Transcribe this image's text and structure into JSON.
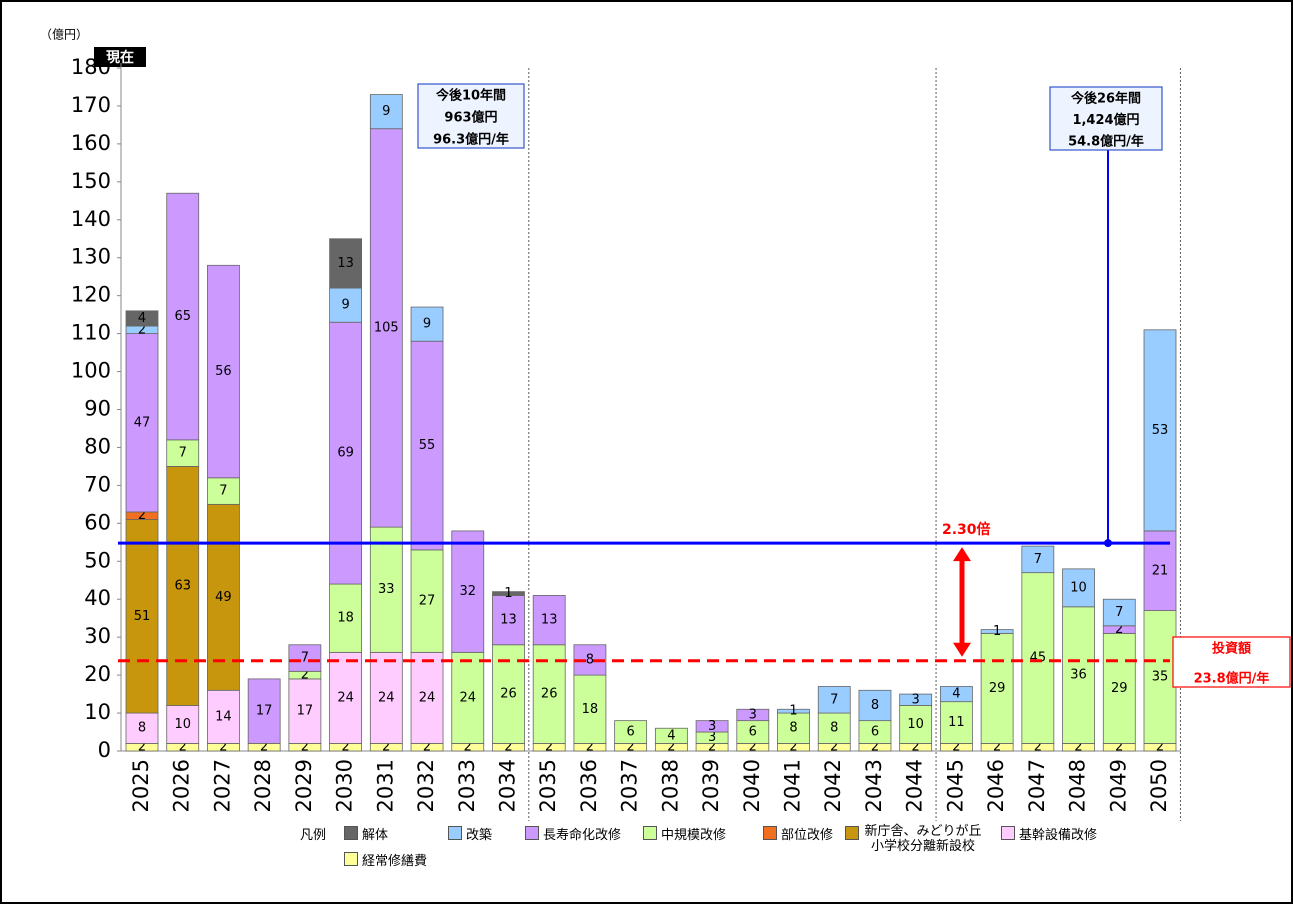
{
  "chart_data": {
    "type": "bar",
    "stacked": true,
    "unit_label": "（億円）",
    "current_label": "現在",
    "legend_title": "凡例",
    "categories": [
      "2025",
      "2026",
      "2027",
      "2028",
      "2029",
      "2030",
      "2031",
      "2032",
      "2033",
      "2034",
      "2035",
      "2036",
      "2037",
      "2038",
      "2039",
      "2040",
      "2041",
      "2042",
      "2043",
      "2044",
      "2045",
      "2046",
      "2047",
      "2048",
      "2049",
      "2050"
    ],
    "series": [
      {
        "name": "経常修繕費",
        "color": "#ffff99",
        "values": [
          2,
          2,
          2,
          2,
          2,
          2,
          2,
          2,
          2,
          2,
          2,
          2,
          2,
          2,
          2,
          2,
          2,
          2,
          2,
          2,
          2,
          2,
          2,
          2,
          2,
          2
        ]
      },
      {
        "name": "基幹設備改修",
        "color": "#ffccff",
        "values": [
          8,
          10,
          14,
          null,
          17,
          24,
          24,
          24,
          null,
          null,
          null,
          null,
          null,
          null,
          null,
          null,
          null,
          null,
          null,
          null,
          null,
          null,
          null,
          null,
          null,
          null
        ]
      },
      {
        "name": "新庁舎、みどりが丘小学校分離新設校",
        "color": "#c8960c",
        "values": [
          51,
          63,
          49,
          null,
          null,
          null,
          null,
          null,
          null,
          null,
          null,
          null,
          null,
          null,
          null,
          null,
          null,
          null,
          null,
          null,
          null,
          null,
          null,
          null,
          null,
          null
        ]
      },
      {
        "name": "部位改修",
        "color": "#f07020",
        "values": [
          2,
          null,
          null,
          null,
          null,
          null,
          null,
          null,
          null,
          null,
          null,
          null,
          null,
          null,
          null,
          null,
          null,
          null,
          null,
          null,
          null,
          null,
          null,
          null,
          null,
          null
        ]
      },
      {
        "name": "中規模改修",
        "color": "#ccff99",
        "values": [
          null,
          7,
          7,
          null,
          2,
          18,
          33,
          27,
          24,
          26,
          26,
          18,
          6,
          4,
          3,
          6,
          8,
          8,
          6,
          10,
          11,
          29,
          45,
          36,
          29,
          35
        ]
      },
      {
        "name": "長寿命化改修",
        "color": "#cc99ff",
        "values": [
          47,
          65,
          56,
          17,
          7,
          69,
          105,
          55,
          32,
          13,
          13,
          8,
          null,
          null,
          3,
          3,
          null,
          null,
          null,
          null,
          null,
          null,
          null,
          null,
          2,
          21
        ]
      },
      {
        "name": "改築",
        "color": "#99ccff",
        "values": [
          2,
          null,
          null,
          null,
          null,
          9,
          9,
          9,
          null,
          null,
          null,
          null,
          null,
          null,
          null,
          null,
          1,
          7,
          8,
          3,
          4,
          1,
          7,
          10,
          7,
          53
        ]
      },
      {
        "name": "解体",
        "color": "#666666",
        "values": [
          4,
          null,
          null,
          null,
          null,
          13,
          null,
          null,
          null,
          1,
          null,
          null,
          null,
          null,
          null,
          null,
          null,
          null,
          null,
          null,
          null,
          null,
          null,
          null,
          null,
          null
        ]
      }
    ],
    "ylim": [
      0,
      180
    ],
    "yticks": [
      0,
      10,
      20,
      30,
      40,
      50,
      60,
      70,
      80,
      90,
      100,
      110,
      120,
      130,
      140,
      150,
      160,
      170,
      180
    ],
    "legend_order": [
      7,
      6,
      5,
      4,
      3,
      2,
      1,
      0
    ],
    "period_dividers": [
      "2034",
      "2044",
      "2050"
    ],
    "reference_lines": [
      {
        "value": 54.8,
        "color": "#0000ff",
        "style": "solid"
      },
      {
        "value": 23.8,
        "color": "#ff0000",
        "style": "dashed"
      }
    ],
    "annotations": {
      "ten_year": [
        "今後10年間",
        "963億円",
        "96.3億円/年"
      ],
      "twentysix_year": [
        "今後26年間",
        "1,424億円",
        "54.8億円/年"
      ],
      "ratio": "2.30倍",
      "investment": [
        "投資額",
        "23.8億円/年"
      ]
    }
  }
}
